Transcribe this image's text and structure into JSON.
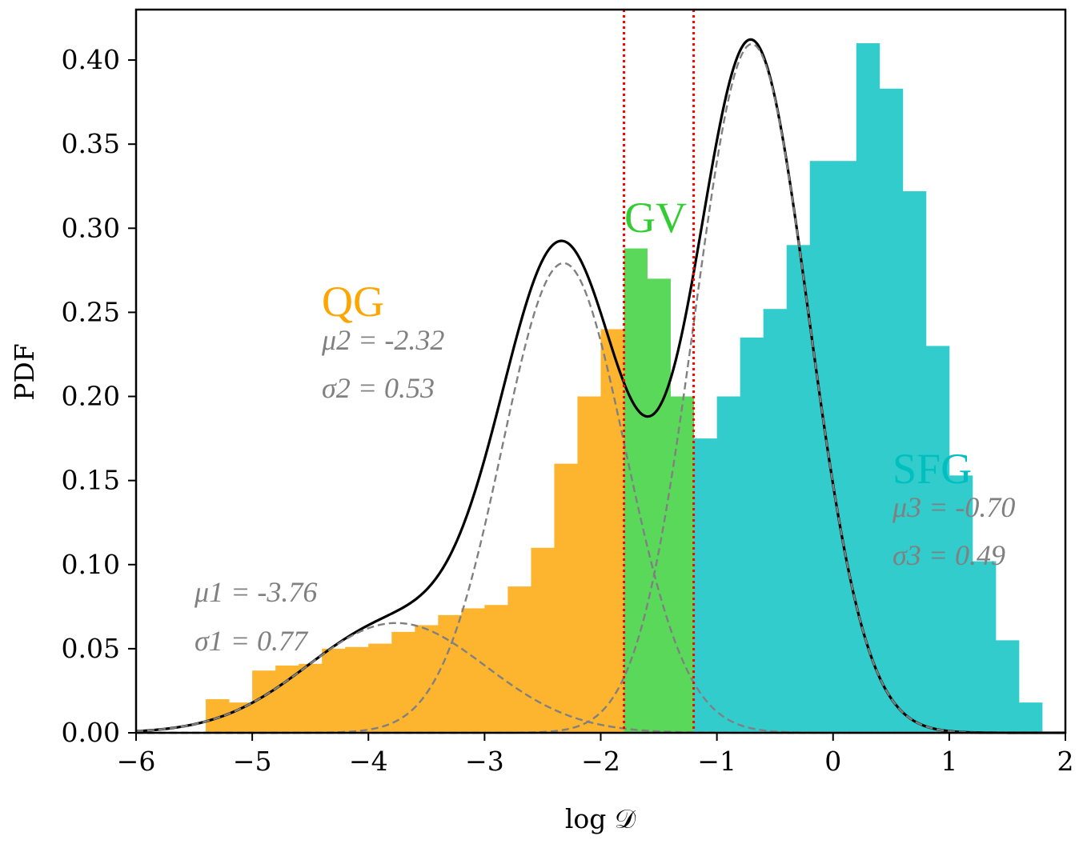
{
  "chart_data": {
    "type": "bar",
    "xlabel": "log 𝒟",
    "ylabel": "PDF",
    "xlim": [
      -6,
      2
    ],
    "ylim": [
      0,
      0.43
    ],
    "xticks": [
      -6,
      -5,
      -4,
      -3,
      -2,
      -1,
      0,
      1,
      2
    ],
    "xtick_labels": [
      "−6",
      "−5",
      "−4",
      "−3",
      "−2",
      "−1",
      "0",
      "1",
      "2"
    ],
    "yticks": [
      0.0,
      0.05,
      0.1,
      0.15,
      0.2,
      0.25,
      0.3,
      0.35,
      0.4
    ],
    "ytick_labels": [
      "0.00",
      "0.05",
      "0.10",
      "0.15",
      "0.20",
      "0.25",
      "0.30",
      "0.35",
      "0.40"
    ],
    "grid": false,
    "bin_width": 0.2,
    "bin_start": -5.4,
    "bin_values": [
      0.02,
      0.018,
      0.037,
      0.04,
      0.041,
      0.05,
      0.051,
      0.053,
      0.06,
      0.064,
      0.07,
      0.074,
      0.076,
      0.087,
      0.11,
      0.16,
      0.2,
      0.24,
      0.288,
      0.27,
      0.2,
      0.175,
      0.2,
      0.235,
      0.252,
      0.29,
      0.34,
      0.34,
      0.41,
      0.383,
      0.322,
      0.23,
      0.153,
      0.102,
      0.055,
      0.018
    ],
    "regions": [
      {
        "name": "QG",
        "x_min": -6,
        "x_max": -1.8,
        "color": "#FDB42F"
      },
      {
        "name": "GV",
        "x_min": -1.8,
        "x_max": -1.2,
        "color": "#5AD85A"
      },
      {
        "name": "SFG",
        "x_min": -1.2,
        "x_max": 2,
        "color": "#33CCCC"
      }
    ],
    "boundaries": [
      -1.8,
      -1.2
    ],
    "components": [
      {
        "mu": -3.76,
        "sigma": 0.77,
        "weight": 0.126
      },
      {
        "mu": -2.32,
        "sigma": 0.53,
        "weight": 0.371
      },
      {
        "mu": -0.7,
        "sigma": 0.49,
        "weight": 0.503
      }
    ],
    "annotations": {
      "qg": {
        "label": "QG",
        "color": "#FFA500",
        "mu": "μ2 = -2.32",
        "sigma": "σ2 = 0.53"
      },
      "gv": {
        "label": "GV",
        "color": "#32CD32"
      },
      "sfg": {
        "label": "SFG",
        "color": "#00BFBF",
        "mu": "μ3 = -0.70",
        "sigma": "σ3 = 0.49"
      },
      "c1": {
        "mu": "μ1 = -3.76",
        "sigma": "σ1 = 0.77"
      }
    }
  }
}
